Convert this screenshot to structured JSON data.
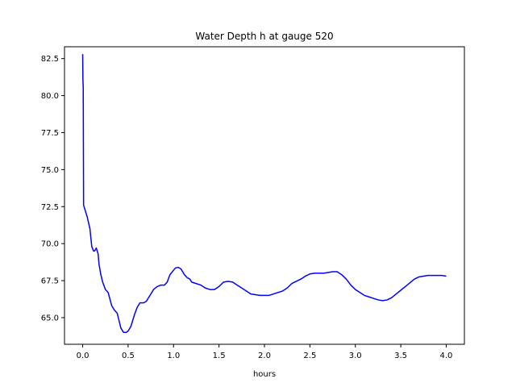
{
  "chart_data": {
    "type": "line",
    "title": "Water Depth h at gauge 520",
    "xlabel": "hours",
    "ylabel": "",
    "xlim": [
      -0.2,
      4.2
    ],
    "ylim": [
      63.2,
      83.3
    ],
    "xticks": [
      "0.0",
      "0.5",
      "1.0",
      "1.5",
      "2.0",
      "2.5",
      "3.0",
      "3.5",
      "4.0"
    ],
    "yticks": [
      "65.0",
      "67.5",
      "70.0",
      "72.5",
      "75.0",
      "77.5",
      "80.0",
      "82.5"
    ],
    "grid": false,
    "legend": "none",
    "series": [
      {
        "color": "#0000ff",
        "x": [
          0.0,
          0.003,
          0.006,
          0.01,
          0.05,
          0.08,
          0.1,
          0.12,
          0.13,
          0.15,
          0.17,
          0.18,
          0.2,
          0.22,
          0.25,
          0.28,
          0.32,
          0.35,
          0.38,
          0.4,
          0.42,
          0.45,
          0.48,
          0.5,
          0.53,
          0.57,
          0.6,
          0.63,
          0.67,
          0.7,
          0.72,
          0.75,
          0.78,
          0.82,
          0.86,
          0.9,
          0.93,
          0.96,
          1.0,
          1.02,
          1.05,
          1.08,
          1.1,
          1.12,
          1.15,
          1.18,
          1.2,
          1.25,
          1.3,
          1.35,
          1.4,
          1.45,
          1.5,
          1.55,
          1.6,
          1.65,
          1.7,
          1.75,
          1.8,
          1.85,
          1.9,
          1.95,
          2.0,
          2.05,
          2.1,
          2.2,
          2.25,
          2.3,
          2.4,
          2.45,
          2.5,
          2.55,
          2.6,
          2.65,
          2.7,
          2.75,
          2.8,
          2.85,
          2.9,
          2.95,
          3.0,
          3.05,
          3.1,
          3.15,
          3.2,
          3.25,
          3.3,
          3.35,
          3.4,
          3.45,
          3.5,
          3.55,
          3.6,
          3.65,
          3.7,
          3.75,
          3.8,
          3.85,
          3.9,
          3.95,
          4.0
        ],
        "values": [
          82.8,
          81.0,
          80.6,
          72.6,
          71.8,
          71.0,
          69.8,
          69.5,
          69.5,
          69.7,
          69.3,
          68.6,
          67.9,
          67.4,
          66.9,
          66.7,
          65.8,
          65.5,
          65.3,
          64.8,
          64.3,
          64.0,
          64.0,
          64.1,
          64.4,
          65.2,
          65.7,
          66.0,
          66.0,
          66.1,
          66.3,
          66.6,
          66.9,
          67.1,
          67.2,
          67.2,
          67.4,
          67.9,
          68.2,
          68.35,
          68.4,
          68.3,
          68.1,
          67.9,
          67.7,
          67.6,
          67.4,
          67.3,
          67.2,
          67.0,
          66.9,
          66.9,
          67.1,
          67.4,
          67.45,
          67.4,
          67.2,
          67.0,
          66.8,
          66.6,
          66.55,
          66.5,
          66.5,
          66.5,
          66.6,
          66.8,
          67.0,
          67.3,
          67.6,
          67.8,
          67.95,
          68.0,
          68.0,
          68.0,
          68.05,
          68.1,
          68.1,
          67.9,
          67.6,
          67.2,
          66.9,
          66.7,
          66.5,
          66.4,
          66.3,
          66.2,
          66.15,
          66.2,
          66.35,
          66.6,
          66.85,
          67.1,
          67.35,
          67.6,
          67.75,
          67.8,
          67.85,
          67.85,
          67.85,
          67.85,
          67.8
        ]
      }
    ]
  }
}
